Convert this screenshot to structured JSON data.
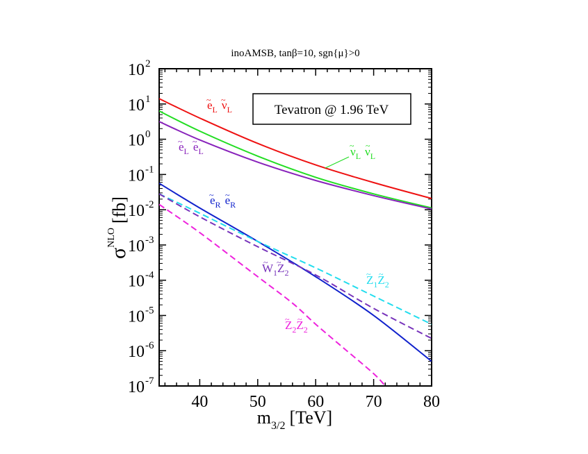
{
  "chart_data": {
    "type": "line",
    "title": "inoAMSB,  tanβ=10,  sgn{μ}>0",
    "xlabel": "m",
    "xlabel_sub": "3/2",
    "xlabel_unit": "[TeV]",
    "ylabel": "σ",
    "ylabel_sup": "NLO",
    "ylabel_unit": "[fb]",
    "xlim": [
      33,
      80
    ],
    "ylim_log10": [
      -7,
      2
    ],
    "y_scale": "log",
    "x_ticks": [
      "40",
      "50",
      "60",
      "70",
      "80"
    ],
    "y_ticks": [
      {
        "base": "10",
        "exp": "2"
      },
      {
        "base": "10",
        "exp": "1"
      },
      {
        "base": "10",
        "exp": "0"
      },
      {
        "base": "10",
        "exp": "-1"
      },
      {
        "base": "10",
        "exp": "-2"
      },
      {
        "base": "10",
        "exp": "-3"
      },
      {
        "base": "10",
        "exp": "-4"
      },
      {
        "base": "10",
        "exp": "-5"
      },
      {
        "base": "10",
        "exp": "-6"
      },
      {
        "base": "10",
        "exp": "-7"
      }
    ],
    "legend_text": "Tevatron @ 1.96 TeV",
    "legend_position": "top-right",
    "series": [
      {
        "name": "eL nuL",
        "color": "#ee1111",
        "dash": "solid",
        "label": {
          "a": "e",
          "a_sub": "L",
          "b": "ν",
          "b_sub": "L"
        },
        "x": [
          33,
          40,
          50,
          60,
          70,
          80
        ],
        "log10y": [
          1.15,
          0.6,
          -0.12,
          -0.73,
          -1.23,
          -1.68
        ]
      },
      {
        "name": "nuL nuL",
        "color": "#22dd22",
        "dash": "solid",
        "label": {
          "a": "ν",
          "a_sub": "L",
          "b": "ν",
          "b_sub": "L"
        },
        "x": [
          33,
          40,
          50,
          60,
          70,
          80
        ],
        "log10y": [
          0.8,
          0.23,
          -0.48,
          -1.08,
          -1.55,
          -1.95
        ]
      },
      {
        "name": "eL eL",
        "color": "#8822bb",
        "dash": "solid",
        "label": {
          "a": "e",
          "a_sub": "L",
          "b": "e",
          "b_sub": "L"
        },
        "x": [
          33,
          40,
          50,
          60,
          70,
          80
        ],
        "log10y": [
          0.5,
          -0.02,
          -0.65,
          -1.17,
          -1.6,
          -1.98
        ]
      },
      {
        "name": "eR eR",
        "color": "#1122cc",
        "dash": "solid",
        "label": {
          "a": "e",
          "a_sub": "R",
          "b": "e",
          "b_sub": "R"
        },
        "x": [
          33,
          40,
          50,
          60,
          70,
          80
        ],
        "log10y": [
          -1.25,
          -1.95,
          -2.9,
          -3.9,
          -5.0,
          -6.3
        ]
      },
      {
        "name": "Z1 Z2",
        "color": "#22ddee",
        "dash": "dashed",
        "label": {
          "a": "Z",
          "a_sub": "1",
          "b": "Z",
          "b_sub": "2"
        },
        "x": [
          33,
          40,
          50,
          60,
          70,
          80
        ],
        "log10y": [
          -1.55,
          -2.1,
          -2.9,
          -3.65,
          -4.45,
          -5.25
        ]
      },
      {
        "name": "W1 Z2",
        "color": "#7733bb",
        "dash": "dashed",
        "label": {
          "a": "W",
          "a_sub": "1",
          "b": "Z",
          "b_sub": "2"
        },
        "x": [
          33,
          40,
          50,
          60,
          70,
          80
        ],
        "log10y": [
          -1.55,
          -2.2,
          -3.05,
          -3.85,
          -4.8,
          -5.65
        ]
      },
      {
        "name": "Z2 Z2",
        "color": "#ee22dd",
        "dash": "dashed",
        "label": {
          "a": "Z",
          "a_sub": "2",
          "b": "Z",
          "b_sub": "2"
        },
        "x": [
          33,
          40,
          50,
          56,
          60,
          65,
          70,
          72
        ],
        "log10y": [
          -1.85,
          -2.65,
          -3.9,
          -4.65,
          -5.25,
          -5.95,
          -6.65,
          -7.0
        ]
      }
    ]
  }
}
